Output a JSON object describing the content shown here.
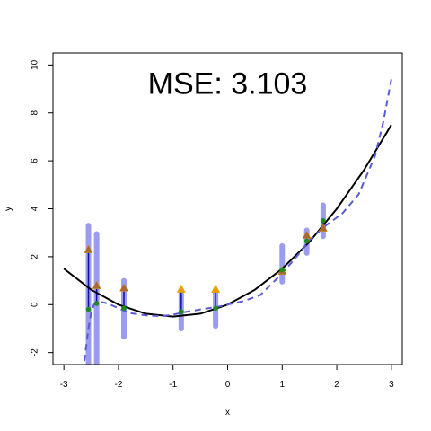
{
  "chart_data": {
    "type": "scatter",
    "title": "",
    "annotation": "MSE:  3.103",
    "xlabel": "x",
    "ylabel": "y",
    "xlim": [
      -3.2,
      3.2
    ],
    "ylim": [
      -2.5,
      10.5
    ],
    "x_ticks": [
      -3,
      -2,
      -1,
      0,
      1,
      2,
      3
    ],
    "x_tick_labels": [
      "-3",
      "-2",
      "-1",
      "0",
      "1",
      "2",
      "3"
    ],
    "y_ticks": [
      -2,
      0,
      2,
      4,
      6,
      8,
      10
    ],
    "y_tick_labels": [
      "-2",
      "0",
      "2",
      "4",
      "6",
      "8",
      "10"
    ],
    "grid": false,
    "colors": {
      "true_curve": "#000000",
      "fitted_curve": "#5a5ad2",
      "interval_bar": "#9b9bef",
      "residual_segment": "#1010a0",
      "observed_point": "#e8a000",
      "fitted_point": "#1f8a1f",
      "overlap_marker": "#a86a30"
    },
    "true_curve": {
      "x": [
        -3,
        -2.5,
        -2,
        -1.5,
        -1,
        -0.5,
        0,
        0.5,
        1,
        1.5,
        2,
        2.5,
        3
      ],
      "y": [
        1.5,
        0.62,
        0.0,
        -0.38,
        -0.5,
        -0.38,
        0.0,
        0.62,
        1.5,
        2.62,
        4.0,
        5.62,
        7.5
      ]
    },
    "fitted_curve": {
      "x": [
        -2.65,
        -2.6,
        -2.55,
        -2.5,
        -2.45,
        -2.4,
        -2.3,
        -2.2,
        -2.0,
        -1.8,
        -1.5,
        -1.2,
        -1.0,
        -0.8,
        -0.5,
        -0.2,
        0.0,
        0.3,
        0.6,
        1.0,
        1.3,
        1.5,
        1.8,
        2.1,
        2.4,
        2.7,
        2.85,
        3.0
      ],
      "y": [
        -2.8,
        -1.9,
        -1.0,
        -0.35,
        0.0,
        0.08,
        0.1,
        0.05,
        -0.15,
        -0.35,
        -0.45,
        -0.48,
        -0.42,
        -0.32,
        -0.2,
        -0.1,
        0.0,
        0.15,
        0.4,
        1.3,
        2.1,
        2.7,
        3.3,
        3.8,
        4.6,
        6.2,
        7.6,
        9.4
      ]
    },
    "observations": {
      "x": [
        -2.55,
        -2.4,
        -1.9,
        -0.85,
        -0.22,
        1.0,
        1.45,
        1.75
      ],
      "observed_y": [
        2.3,
        0.8,
        0.7,
        0.65,
        0.65,
        1.4,
        2.9,
        3.2
      ],
      "fitted_y": [
        -0.2,
        0.05,
        -0.15,
        -0.3,
        -0.15,
        1.45,
        2.65,
        3.5
      ],
      "interval_low": [
        -2.6,
        -2.6,
        -1.35,
        -1.0,
        -0.9,
        0.95,
        2.15,
        2.85
      ],
      "interval_high": [
        3.3,
        2.95,
        1.0,
        0.55,
        0.55,
        2.45,
        3.1,
        4.15
      ]
    },
    "overlap_markers": {
      "x": [
        -2.55,
        -2.4,
        -1.9,
        1.0,
        1.45,
        1.75
      ],
      "y": [
        2.3,
        0.8,
        0.7,
        1.4,
        2.9,
        3.2
      ]
    }
  }
}
